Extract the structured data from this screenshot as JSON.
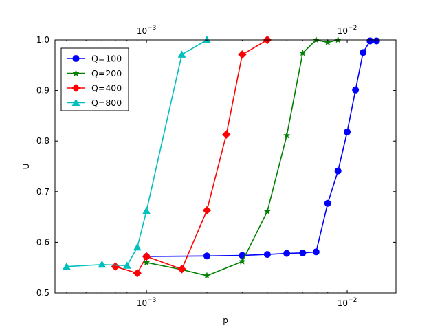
{
  "chart_data": {
    "type": "line",
    "title": "",
    "xlabel": "p",
    "ylabel": "U",
    "xscale": "log",
    "xlim": [
      0.00035,
      0.0175
    ],
    "ylim": [
      0.5,
      1.0
    ],
    "x_tick_labels": [
      {
        "value": 0.001,
        "base": "10",
        "exp": "−3"
      },
      {
        "value": 0.01,
        "base": "10",
        "exp": "−2"
      }
    ],
    "y_ticks": [
      "0.5",
      "0.6",
      "0.7",
      "0.8",
      "0.9",
      "1.0"
    ],
    "grid": false,
    "legend_position": "top-left",
    "series": [
      {
        "name": "Q=100",
        "color": "#0000ff",
        "marker": "circle",
        "x": [
          0.001,
          0.002,
          0.003,
          0.004,
          0.005,
          0.006,
          0.007,
          0.008,
          0.009,
          0.01,
          0.011,
          0.012,
          0.013,
          0.014
        ],
        "y": [
          0.572,
          0.573,
          0.574,
          0.576,
          0.578,
          0.579,
          0.581,
          0.677,
          0.741,
          0.818,
          0.901,
          0.975,
          0.998,
          0.998
        ]
      },
      {
        "name": "Q=200",
        "color": "#008000",
        "marker": "star",
        "x": [
          0.001,
          0.0015,
          0.002,
          0.003,
          0.004,
          0.005,
          0.006,
          0.007,
          0.008,
          0.009
        ],
        "y": [
          0.56,
          0.546,
          0.534,
          0.562,
          0.661,
          0.811,
          0.974,
          1.0,
          0.995,
          1.0
        ]
      },
      {
        "name": "Q=400",
        "color": "#ff0000",
        "marker": "diamond",
        "x": [
          0.0007,
          0.0009,
          0.001,
          0.0015,
          0.002,
          0.0025,
          0.003,
          0.004
        ],
        "y": [
          0.552,
          0.539,
          0.572,
          0.547,
          0.663,
          0.813,
          0.971,
          1.0
        ]
      },
      {
        "name": "Q=800",
        "color": "#00bfbf",
        "marker": "triangle",
        "x": [
          0.0004,
          0.0006,
          0.0008,
          0.0009,
          0.001,
          0.0015,
          0.002
        ],
        "y": [
          0.552,
          0.556,
          0.554,
          0.59,
          0.662,
          0.971,
          1.0
        ]
      }
    ]
  }
}
